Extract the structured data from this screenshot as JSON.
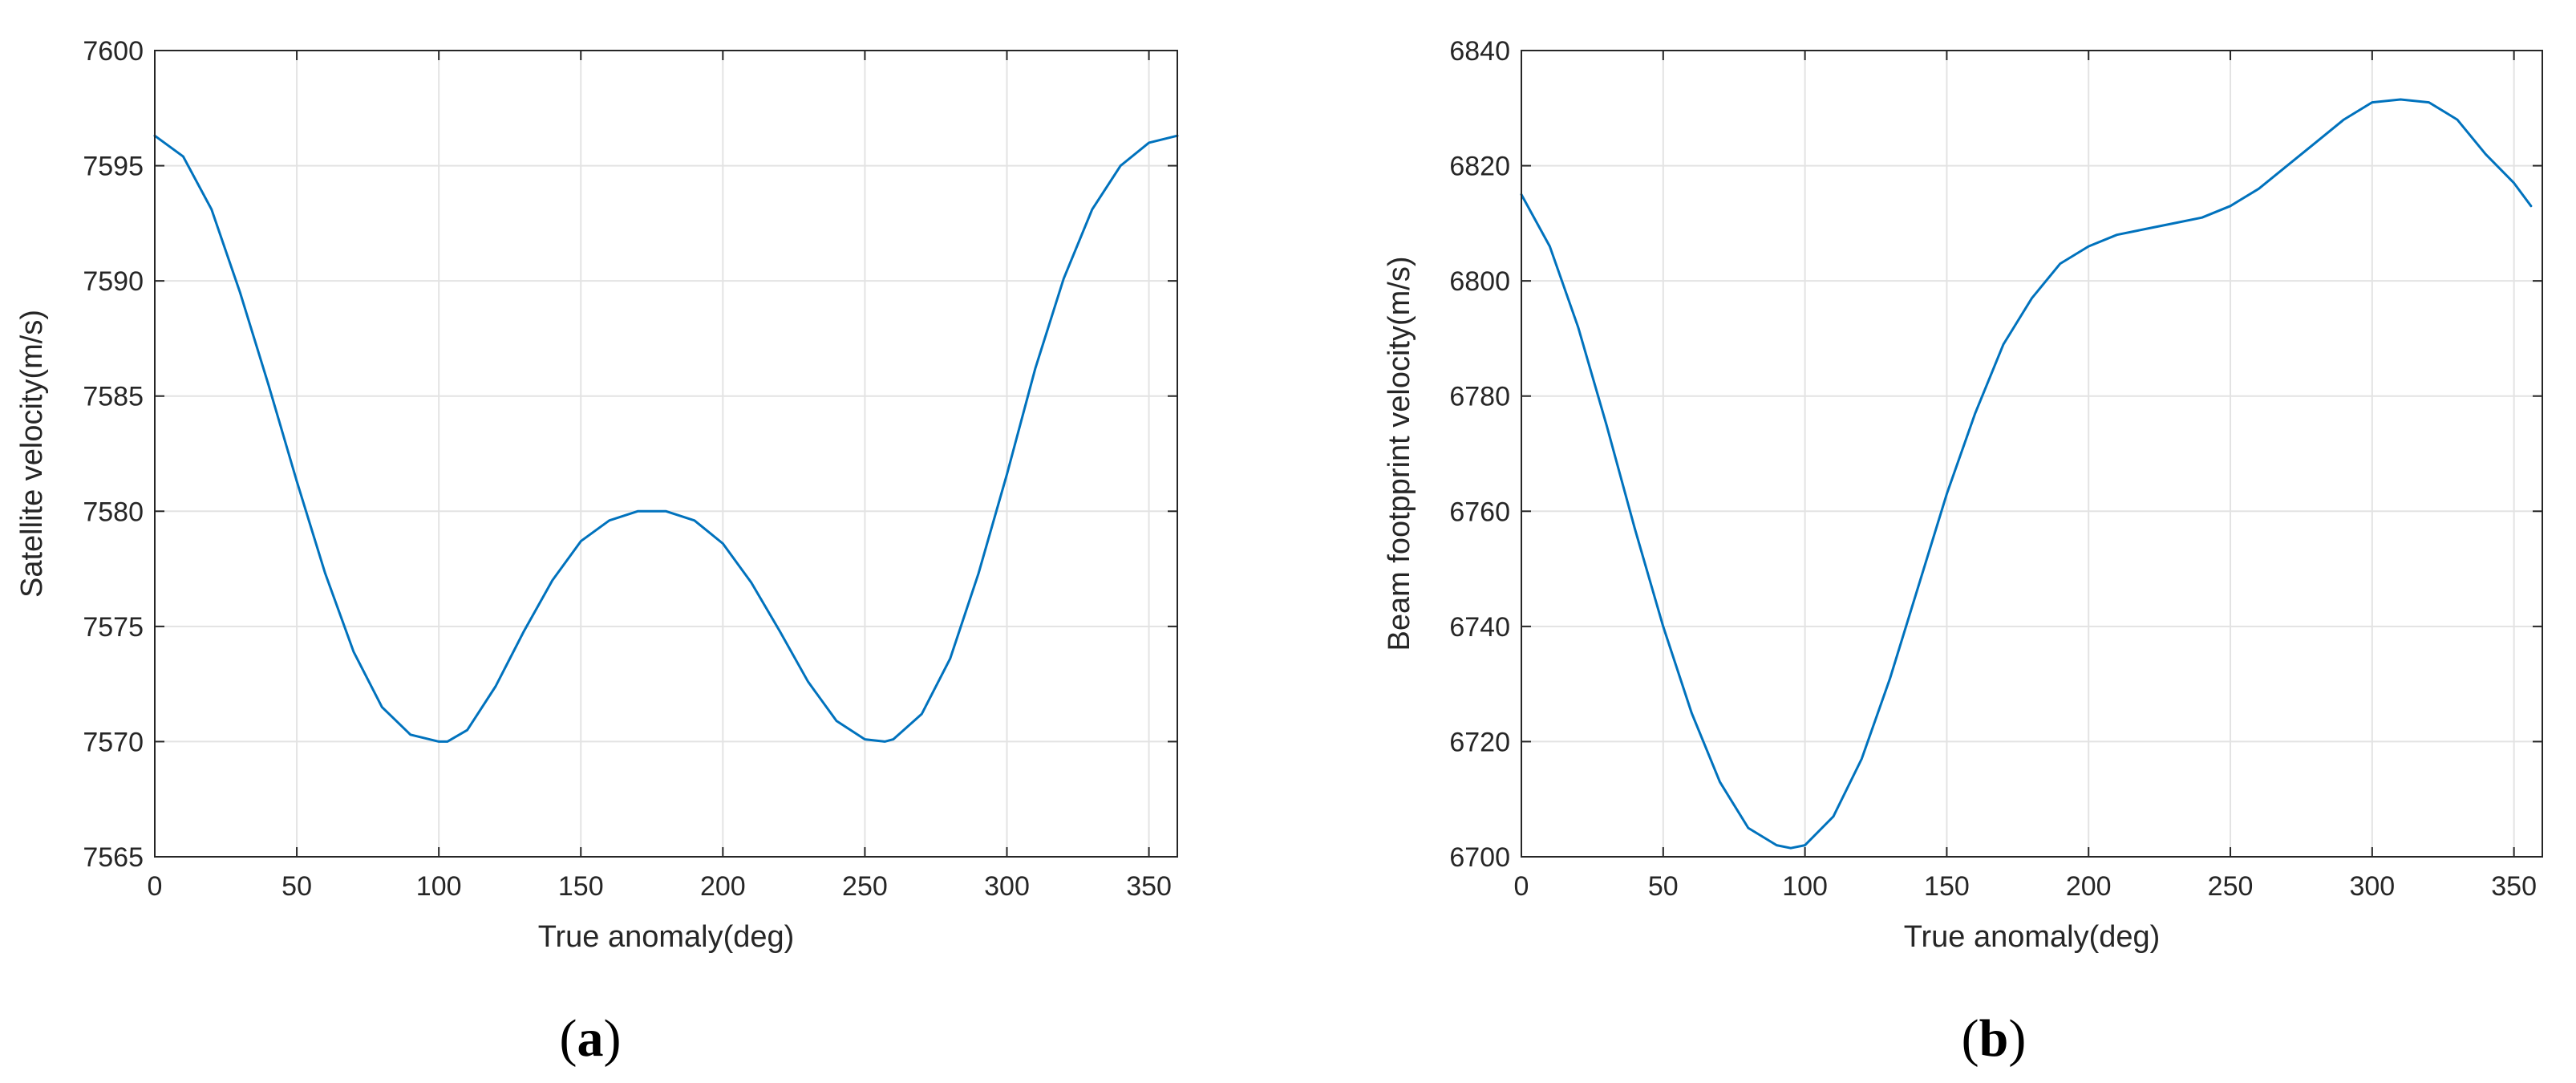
{
  "chart_data": [
    {
      "type": "line",
      "panel_label": "a",
      "xlabel": "True anomaly(deg)",
      "ylabel": "Satellite velocity(m/s)",
      "xlim": [
        0,
        360
      ],
      "ylim": [
        7565,
        7600
      ],
      "xticks": [
        0,
        50,
        100,
        150,
        200,
        250,
        300,
        350
      ],
      "yticks": [
        7565,
        7570,
        7575,
        7580,
        7585,
        7590,
        7595,
        7600
      ],
      "grid": true,
      "color": "#0072BD",
      "series": [
        {
          "x": [
            0,
            10,
            20,
            30,
            40,
            50,
            60,
            70,
            80,
            90,
            100,
            103,
            110,
            120,
            130,
            140,
            150,
            160,
            170,
            180,
            190,
            200,
            210,
            220,
            230,
            240,
            250,
            257,
            260,
            270,
            280,
            290,
            300,
            310,
            320,
            330,
            340,
            350,
            360
          ],
          "values": [
            7596.3,
            7595.4,
            7593.1,
            7589.5,
            7585.5,
            7581.3,
            7577.3,
            7573.9,
            7571.5,
            7570.3,
            7570.0,
            7570.0,
            7570.5,
            7572.4,
            7574.8,
            7577.0,
            7578.7,
            7579.6,
            7580.0,
            7580.0,
            7579.6,
            7578.6,
            7576.9,
            7574.8,
            7572.6,
            7570.9,
            7570.1,
            7570.0,
            7570.1,
            7571.2,
            7573.6,
            7577.3,
            7581.6,
            7586.2,
            7590.1,
            7593.1,
            7595.0,
            7596.0,
            7596.3
          ]
        }
      ]
    },
    {
      "type": "line",
      "panel_label": "b",
      "xlabel": "True anomaly(deg)",
      "ylabel": "Beam footpprint velocity(m/s)",
      "xlim": [
        0,
        360
      ],
      "ylim": [
        6700,
        6840
      ],
      "xticks": [
        0,
        50,
        100,
        150,
        200,
        250,
        300,
        350
      ],
      "yticks": [
        6700,
        6720,
        6740,
        6760,
        6780,
        6800,
        6820,
        6840
      ],
      "grid": true,
      "color": "#0072BD",
      "series": [
        {
          "x": [
            0,
            10,
            20,
            30,
            40,
            50,
            60,
            70,
            80,
            90,
            95,
            100,
            110,
            120,
            130,
            140,
            150,
            160,
            170,
            180,
            190,
            200,
            210,
            220,
            230,
            240,
            250,
            260,
            270,
            280,
            290,
            300,
            310,
            320,
            330,
            340,
            350,
            356
          ],
          "values": [
            6815,
            6806,
            6792,
            6775,
            6757,
            6740,
            6725,
            6713,
            6705,
            6702,
            6701.5,
            6702,
            6707,
            6717,
            6731,
            6747,
            6763,
            6777,
            6789,
            6797,
            6803,
            6806,
            6808,
            6809,
            6810,
            6811,
            6813,
            6816,
            6820,
            6824,
            6828,
            6831,
            6831.5,
            6831,
            6828,
            6822,
            6817,
            6813
          ]
        }
      ]
    }
  ]
}
